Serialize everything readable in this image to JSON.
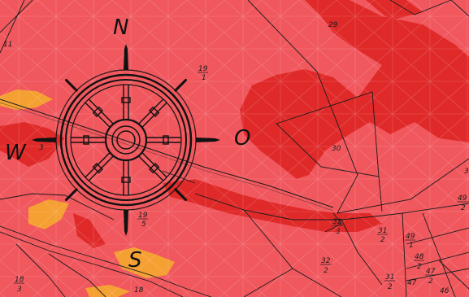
{
  "map": {
    "colors": {
      "background": "#f0585e",
      "dark_zone": "#e02a2a",
      "orange_zone": "#f5a033",
      "parcel_line": "#1a1a1a",
      "triangulation": "#ffffff"
    },
    "compass": {
      "north": "N",
      "west": "W",
      "east": "O",
      "south": "S"
    },
    "parcels": [
      {
        "id": "p-11",
        "num": "11",
        "den": ""
      },
      {
        "id": "p-29",
        "num": "29",
        "den": ""
      },
      {
        "id": "p-19-1",
        "num": "19",
        "den": "1"
      },
      {
        "id": "p-30",
        "num": "30",
        "den": ""
      },
      {
        "id": "p-19-5",
        "num": "19",
        "den": "5"
      },
      {
        "id": "p-32-3",
        "num": "32",
        "den": "3"
      },
      {
        "id": "p-31-2a",
        "num": "31",
        "den": "2"
      },
      {
        "id": "p-49-1",
        "num": "49",
        "den": "1"
      },
      {
        "id": "p-49-2",
        "num": "49",
        "den": "2"
      },
      {
        "id": "p-48-2",
        "num": "48",
        "den": "2"
      },
      {
        "id": "p-47-2",
        "num": "47",
        "den": "2"
      },
      {
        "id": "p-32-2",
        "num": "32",
        "den": "2"
      },
      {
        "id": "p-31-2b",
        "num": "31",
        "den": "2"
      },
      {
        "id": "p-47",
        "num": "47",
        "den": ""
      },
      {
        "id": "p-46",
        "num": "46",
        "den": ""
      },
      {
        "id": "p-18-3",
        "num": "18",
        "den": "3"
      },
      {
        "id": "p-18",
        "num": "18",
        "den": ""
      },
      {
        "id": "p-3",
        "num": "3",
        "den": ""
      },
      {
        "id": "p-3b",
        "num": "3",
        "den": ""
      }
    ]
  }
}
